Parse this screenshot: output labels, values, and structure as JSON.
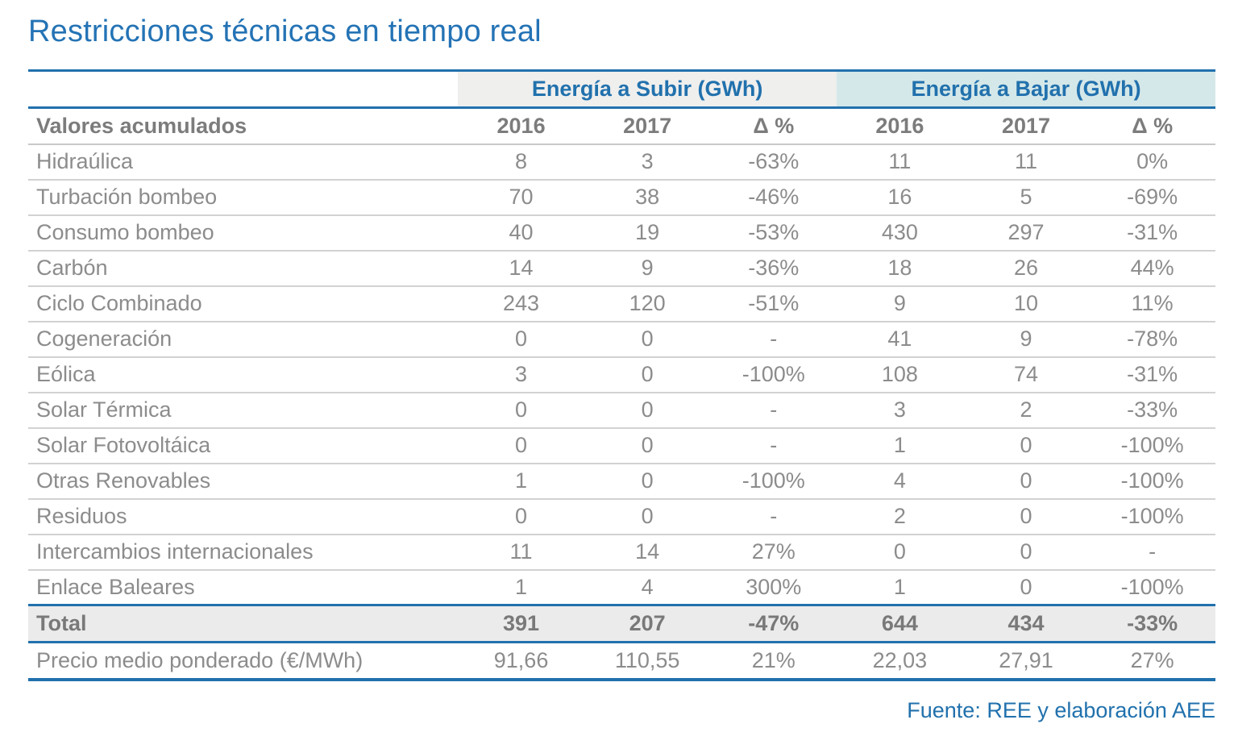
{
  "chart_data": {
    "type": "table",
    "title": "Restricciones técnicas en tiempo real",
    "group_headers": [
      {
        "label": "Energía a Subir (GWh)",
        "span": 3
      },
      {
        "label": "Energía a Bajar (GWh)",
        "span": 3
      }
    ],
    "corner_header": "Valores acumulados",
    "column_headers": [
      "2016",
      "2017",
      "Δ %",
      "2016",
      "2017",
      "Δ %"
    ],
    "rows": [
      {
        "label": "Hidraúlica",
        "values": [
          "8",
          "3",
          "-63%",
          "11",
          "11",
          "0%"
        ]
      },
      {
        "label": "Turbación bombeo",
        "values": [
          "70",
          "38",
          "-46%",
          "16",
          "5",
          "-69%"
        ]
      },
      {
        "label": "Consumo bombeo",
        "values": [
          "40",
          "19",
          "-53%",
          "430",
          "297",
          "-31%"
        ]
      },
      {
        "label": "Carbón",
        "values": [
          "14",
          "9",
          "-36%",
          "18",
          "26",
          "44%"
        ]
      },
      {
        "label": "Ciclo Combinado",
        "values": [
          "243",
          "120",
          "-51%",
          "9",
          "10",
          "11%"
        ]
      },
      {
        "label": "Cogeneración",
        "values": [
          "0",
          "0",
          "-",
          "41",
          "9",
          "-78%"
        ]
      },
      {
        "label": "Eólica",
        "values": [
          "3",
          "0",
          "-100%",
          "108",
          "74",
          "-31%"
        ]
      },
      {
        "label": "Solar Térmica",
        "values": [
          "0",
          "0",
          "-",
          "3",
          "2",
          "-33%"
        ]
      },
      {
        "label": "Solar Fotovoltáica",
        "values": [
          "0",
          "0",
          "-",
          "1",
          "0",
          "-100%"
        ]
      },
      {
        "label": "Otras Renovables",
        "values": [
          "1",
          "0",
          "-100%",
          "4",
          "0",
          "-100%"
        ]
      },
      {
        "label": "Residuos",
        "values": [
          "0",
          "0",
          "-",
          "2",
          "0",
          "-100%"
        ]
      },
      {
        "label": "Intercambios internacionales",
        "values": [
          "11",
          "14",
          "27%",
          "0",
          "0",
          "-"
        ]
      },
      {
        "label": "Enlace Baleares",
        "values": [
          "1",
          "4",
          "300%",
          "1",
          "0",
          "-100%"
        ]
      },
      {
        "label": "Total",
        "values": [
          "391",
          "207",
          "-47%",
          "644",
          "434",
          "-33%"
        ],
        "emphasis": true
      },
      {
        "label": "Precio medio ponderado (€/MWh)",
        "values": [
          "91,66",
          "110,55",
          "21%",
          "22,03",
          "27,91",
          "27%"
        ]
      }
    ],
    "footer_source": "Fuente: REE y elaboración AEE"
  },
  "colors": {
    "accent_blue": "#2171ad",
    "title_blue": "#2473b5",
    "subir_bg": "#efefee",
    "bajar_bg": "#d5e8e9",
    "total_bg": "#ebebeb",
    "body_text_gray": "#8c8c8c",
    "header_text_gray": "#7c7c7c",
    "separator_gray": "#d2d2d2"
  }
}
